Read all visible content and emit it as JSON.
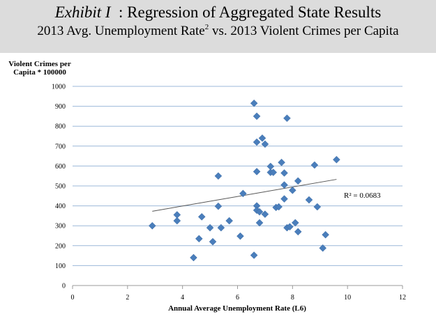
{
  "header": {
    "exhibit_label": "Exhibit I",
    "title_rest": "  : Regression of Aggregated State Results",
    "subtitle_before": "2013 Avg. Unemployment Rate",
    "subtitle_sup": "2",
    "subtitle_after": " vs. 2013 Violent Crimes per Capita",
    "background_color": "#dcdcdc"
  },
  "chart_data": {
    "type": "scatter",
    "ylabel_line1": "Violent Crimes per",
    "ylabel_line2": "Capita * 100000",
    "xlabel": "Annual Average Unemployment Rate (L6)",
    "xlim": [
      0,
      12
    ],
    "ylim": [
      0,
      1000
    ],
    "x_ticks": [
      "0",
      "2",
      "4",
      "6",
      "8",
      "10",
      "12"
    ],
    "y_ticks": [
      "0",
      "100",
      "200",
      "300",
      "400",
      "500",
      "600",
      "700",
      "800",
      "900",
      "1000"
    ],
    "grid": "horizontal",
    "marker": "diamond",
    "marker_color": "#4a7ebb",
    "trendline": {
      "type": "linear",
      "x": [
        2.9,
        9.6
      ],
      "y": [
        373,
        533
      ],
      "color": "#555555"
    },
    "r_squared_label": "R² = 0.0683",
    "points": [
      {
        "x": 2.9,
        "y": 300
      },
      {
        "x": 3.8,
        "y": 355
      },
      {
        "x": 3.8,
        "y": 325
      },
      {
        "x": 4.4,
        "y": 140
      },
      {
        "x": 4.6,
        "y": 235
      },
      {
        "x": 4.7,
        "y": 345
      },
      {
        "x": 5.0,
        "y": 290
      },
      {
        "x": 5.1,
        "y": 220
      },
      {
        "x": 5.3,
        "y": 550
      },
      {
        "x": 5.3,
        "y": 398
      },
      {
        "x": 5.4,
        "y": 290
      },
      {
        "x": 5.7,
        "y": 325
      },
      {
        "x": 6.1,
        "y": 248
      },
      {
        "x": 6.2,
        "y": 462
      },
      {
        "x": 6.6,
        "y": 915
      },
      {
        "x": 6.6,
        "y": 152
      },
      {
        "x": 6.7,
        "y": 850
      },
      {
        "x": 6.7,
        "y": 720
      },
      {
        "x": 6.7,
        "y": 572
      },
      {
        "x": 6.7,
        "y": 400
      },
      {
        "x": 6.7,
        "y": 378
      },
      {
        "x": 6.8,
        "y": 370
      },
      {
        "x": 6.8,
        "y": 315
      },
      {
        "x": 6.9,
        "y": 740
      },
      {
        "x": 7.0,
        "y": 710
      },
      {
        "x": 7.0,
        "y": 358
      },
      {
        "x": 7.2,
        "y": 598
      },
      {
        "x": 7.2,
        "y": 568
      },
      {
        "x": 7.3,
        "y": 568
      },
      {
        "x": 7.4,
        "y": 392
      },
      {
        "x": 7.5,
        "y": 395
      },
      {
        "x": 7.6,
        "y": 618
      },
      {
        "x": 7.7,
        "y": 565
      },
      {
        "x": 7.7,
        "y": 505
      },
      {
        "x": 7.7,
        "y": 435
      },
      {
        "x": 7.8,
        "y": 840
      },
      {
        "x": 7.8,
        "y": 290
      },
      {
        "x": 7.9,
        "y": 295
      },
      {
        "x": 8.0,
        "y": 478
      },
      {
        "x": 8.1,
        "y": 315
      },
      {
        "x": 8.2,
        "y": 525
      },
      {
        "x": 8.2,
        "y": 270
      },
      {
        "x": 8.6,
        "y": 430
      },
      {
        "x": 8.8,
        "y": 605
      },
      {
        "x": 8.9,
        "y": 395
      },
      {
        "x": 9.1,
        "y": 188
      },
      {
        "x": 9.2,
        "y": 255
      },
      {
        "x": 9.6,
        "y": 632
      }
    ]
  }
}
